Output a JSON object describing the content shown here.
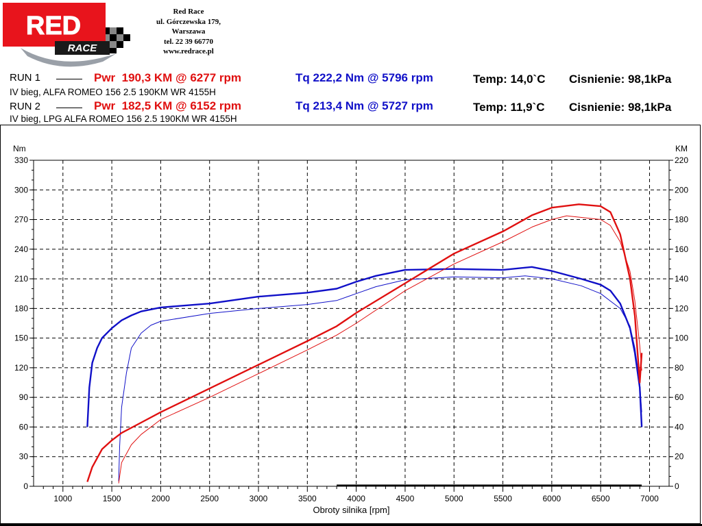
{
  "header": {
    "logo_text": "RED",
    "logo_sub": "RACE",
    "address_lines": [
      "Red Race",
      "ul. Górczewska 179,",
      "Warszawa",
      "tel. 22 39 66770",
      "www.redrace.pl"
    ]
  },
  "runs": [
    {
      "label": "RUN 1",
      "pwr": "Pwr  190,3 KM @ 6277 rpm",
      "tq": "Tq 222,2 Nm @ 5796 rpm",
      "temp": "Temp: 14,0`C",
      "pressure": "Cisnienie: 98,1kPa",
      "description": "IV bieg, ALFA ROMEO 156 2.5 190KM WR 4155H"
    },
    {
      "label": "RUN 2",
      "pwr": "Pwr  182,5 KM @ 6152 rpm",
      "tq": "Tq 213,4 Nm @ 5727 rpm",
      "temp": "Temp: 11,9`C",
      "pressure": "Cisnienie: 98,1kPa",
      "description": "IV bieg, LPG ALFA ROMEO 156 2.5 190KM WR 4155H"
    }
  ],
  "colors": {
    "power": "#e01010",
    "torque": "#1010c8",
    "grid": "#000000",
    "logo_red": "#e8141c"
  },
  "chart_data": {
    "type": "line",
    "xlabel": "Obroty silnika [rpm]",
    "ylabel_left": "Nm",
    "ylabel_right": "KM",
    "xlim": [
      700,
      7200
    ],
    "ylim_left": [
      0,
      330
    ],
    "ylim_right": [
      0,
      220
    ],
    "x_ticks": [
      1000,
      1500,
      2000,
      2500,
      3000,
      3500,
      4000,
      4500,
      5000,
      5500,
      6000,
      6500,
      7000
    ],
    "y_ticks_left": [
      0,
      30,
      60,
      90,
      120,
      150,
      180,
      210,
      240,
      270,
      300,
      330
    ],
    "y_ticks_right": [
      0,
      20,
      40,
      60,
      80,
      100,
      120,
      140,
      160,
      180,
      200,
      220
    ],
    "grid": true,
    "series": [
      {
        "name": "RUN 1",
        "quantity": "torque",
        "axis": "left",
        "points": [
          [
            1250,
            60
          ],
          [
            1270,
            100
          ],
          [
            1300,
            125
          ],
          [
            1350,
            140
          ],
          [
            1400,
            150
          ],
          [
            1500,
            160
          ],
          [
            1600,
            168
          ],
          [
            1700,
            173
          ],
          [
            1800,
            177
          ],
          [
            2000,
            181
          ],
          [
            2500,
            185
          ],
          [
            3000,
            192
          ],
          [
            3500,
            196
          ],
          [
            3800,
            200
          ],
          [
            4000,
            207
          ],
          [
            4200,
            213
          ],
          [
            4500,
            219
          ],
          [
            5000,
            220
          ],
          [
            5500,
            219
          ],
          [
            5796,
            222
          ],
          [
            6000,
            218
          ],
          [
            6300,
            210
          ],
          [
            6500,
            204
          ],
          [
            6600,
            198
          ],
          [
            6700,
            185
          ],
          [
            6800,
            160
          ],
          [
            6850,
            135
          ],
          [
            6900,
            100
          ],
          [
            6920,
            60
          ]
        ]
      },
      {
        "name": "RUN 2",
        "quantity": "torque",
        "axis": "left",
        "points": [
          [
            1570,
            5
          ],
          [
            1580,
            40
          ],
          [
            1600,
            80
          ],
          [
            1650,
            115
          ],
          [
            1700,
            140
          ],
          [
            1800,
            155
          ],
          [
            1900,
            163
          ],
          [
            2000,
            167
          ],
          [
            2500,
            175
          ],
          [
            3000,
            180
          ],
          [
            3500,
            184
          ],
          [
            3800,
            188
          ],
          [
            4000,
            195
          ],
          [
            4200,
            202
          ],
          [
            4500,
            209
          ],
          [
            5000,
            212
          ],
          [
            5500,
            211
          ],
          [
            5727,
            213
          ],
          [
            6000,
            210
          ],
          [
            6300,
            203
          ],
          [
            6500,
            195
          ],
          [
            6700,
            180
          ],
          [
            6800,
            162
          ],
          [
            6850,
            140
          ],
          [
            6900,
            105
          ],
          [
            6920,
            75
          ]
        ]
      },
      {
        "name": "RUN 1",
        "quantity": "power",
        "axis": "right",
        "points": [
          [
            1250,
            3
          ],
          [
            1300,
            13
          ],
          [
            1400,
            25
          ],
          [
            1500,
            31
          ],
          [
            1600,
            36
          ],
          [
            1800,
            43
          ],
          [
            2000,
            50
          ],
          [
            2500,
            66
          ],
          [
            3000,
            82
          ],
          [
            3500,
            98
          ],
          [
            3800,
            108
          ],
          [
            4000,
            117
          ],
          [
            4500,
            137
          ],
          [
            5000,
            157
          ],
          [
            5500,
            172
          ],
          [
            5800,
            183
          ],
          [
            6000,
            188
          ],
          [
            6277,
            190.3
          ],
          [
            6500,
            189
          ],
          [
            6600,
            185
          ],
          [
            6700,
            170
          ],
          [
            6800,
            140
          ],
          [
            6850,
            115
          ],
          [
            6900,
            70
          ],
          [
            6920,
            90
          ]
        ]
      },
      {
        "name": "RUN 2",
        "quantity": "power",
        "axis": "right",
        "points": [
          [
            1570,
            2
          ],
          [
            1600,
            16
          ],
          [
            1700,
            28
          ],
          [
            1800,
            35
          ],
          [
            2000,
            45
          ],
          [
            2500,
            60
          ],
          [
            3000,
            76
          ],
          [
            3500,
            92
          ],
          [
            3800,
            102
          ],
          [
            4000,
            110
          ],
          [
            4500,
            132
          ],
          [
            5000,
            150
          ],
          [
            5500,
            165
          ],
          [
            5800,
            175
          ],
          [
            6000,
            180
          ],
          [
            6152,
            182.5
          ],
          [
            6500,
            180
          ],
          [
            6600,
            176
          ],
          [
            6700,
            165
          ],
          [
            6800,
            145
          ],
          [
            6850,
            125
          ],
          [
            6900,
            95
          ],
          [
            6920,
            78
          ]
        ]
      }
    ]
  }
}
